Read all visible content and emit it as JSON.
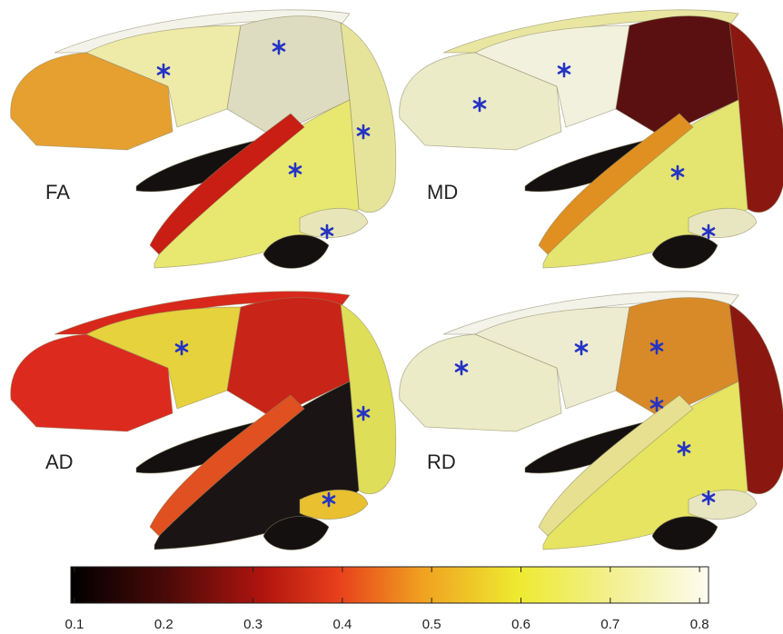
{
  "panels": [
    {
      "label": "FA"
    },
    {
      "label": "MD"
    },
    {
      "label": "AD"
    },
    {
      "label": "RD"
    }
  ],
  "colorbar": {
    "xlim": [
      0.096,
      0.81
    ],
    "xticks": [
      0.1,
      0.2,
      0.3,
      0.4,
      0.5,
      0.6,
      0.7,
      0.8
    ]
  }
}
